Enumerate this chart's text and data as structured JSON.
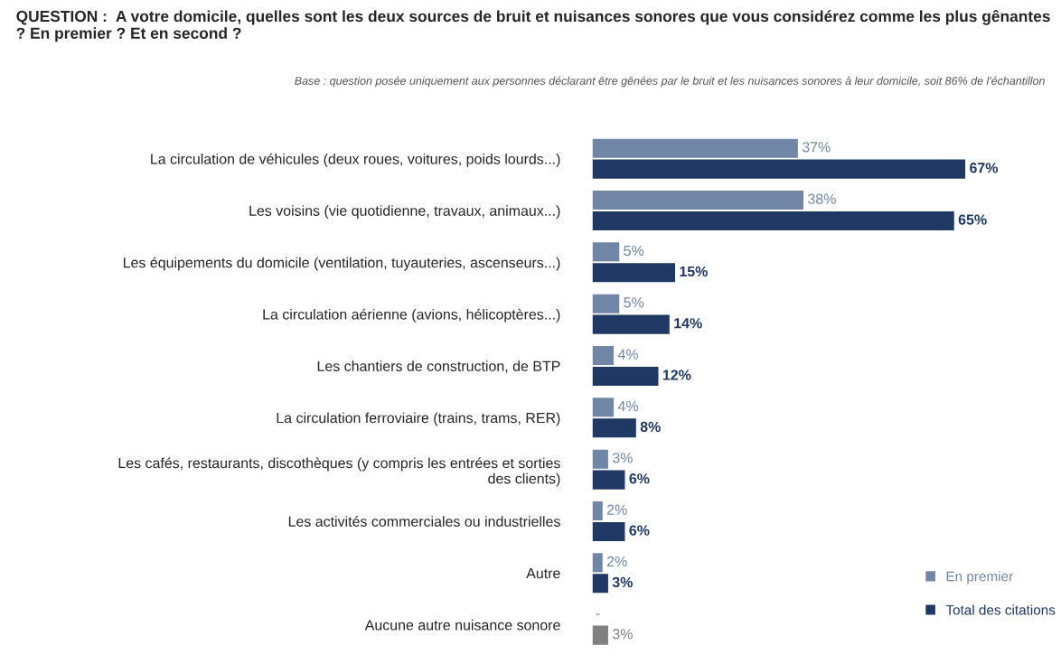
{
  "chart_data": {
    "type": "bar",
    "orientation": "horizontal",
    "title": "QUESTION :  A votre domicile, quelles sont les deux sources de bruit et nuisances sonores que vous considérez comme les plus gênantes ? En premier ? Et en second ?",
    "subtitle": "Base : question posée uniquement aux personnes déclarant être gênées par le bruit et les nuisances sonores à leur domicile, soit 86% de l'échantillon",
    "categories": [
      "La circulation de véhicules (deux roues, voitures, poids lourds...)",
      "Les voisins (vie quotidienne, travaux, animaux...)",
      "Les équipements du domicile (ventilation, tuyauteries, ascenseurs...)",
      "La circulation aérienne (avions, hélicoptères...)",
      "Les chantiers de construction, de BTP",
      "La circulation ferroviaire (trains, trams, RER)",
      "Les cafés, restaurants, discothèques (y compris les entrées et sorties\ndes clients)",
      "Les activités commerciales ou industrielles",
      "Autre",
      "Aucune autre nuisance sonore"
    ],
    "series": [
      {
        "name": "En premier",
        "color": "#7186a6",
        "values": [
          37,
          38,
          5,
          5,
          4,
          4,
          3,
          2,
          2,
          null
        ],
        "value_labels": [
          "37%",
          "38%",
          "5%",
          "5%",
          "4%",
          "4%",
          "3%",
          "2%",
          "2%",
          "-"
        ]
      },
      {
        "name": "Total des citations",
        "color": "#1f3864",
        "colors": [
          "#1f3864",
          "#1f3864",
          "#1f3864",
          "#1f3864",
          "#1f3864",
          "#1f3864",
          "#1f3864",
          "#1f3864",
          "#1f3864",
          "#808080"
        ],
        "values": [
          67,
          65,
          15,
          14,
          12,
          8,
          6,
          6,
          3,
          3
        ],
        "value_labels": [
          "67%",
          "65%",
          "15%",
          "14%",
          "12%",
          "8%",
          "6%",
          "6%",
          "3%",
          "3%"
        ]
      }
    ],
    "legend": "bottom right",
    "grid": false
  }
}
